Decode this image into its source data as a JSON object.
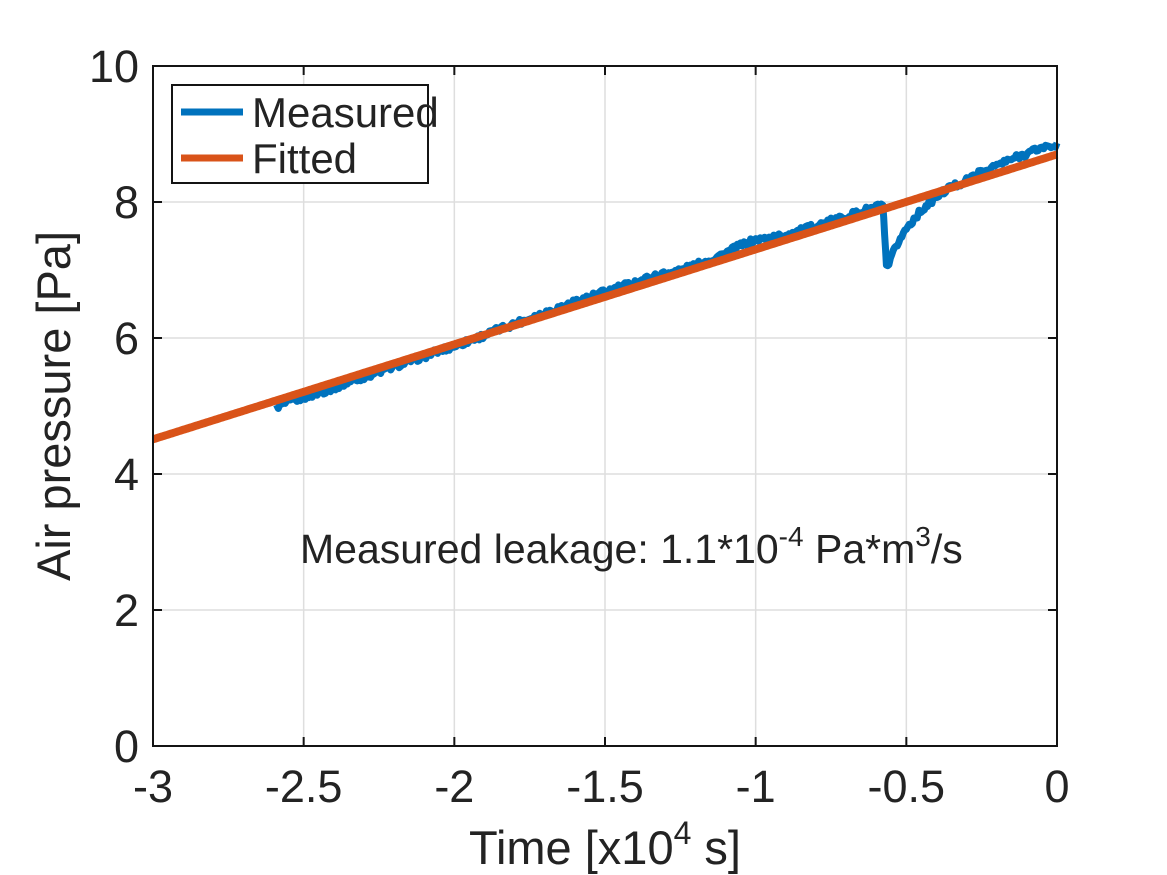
{
  "figure": {
    "background": "#ffffff"
  },
  "chart_data": {
    "type": "line",
    "title": "",
    "xlabel": "Time [x10^4 s]",
    "xlabel_parts": [
      {
        "t": "Time [x10"
      },
      {
        "t": "4",
        "sup": true
      },
      {
        "t": " s]"
      }
    ],
    "ylabel": "Air pressure [Pa]",
    "xlim": [
      -3,
      0
    ],
    "ylim": [
      0,
      10
    ],
    "xticks": [
      -3,
      -2.5,
      -2,
      -1.5,
      -1,
      -0.5,
      0
    ],
    "xtick_labels": [
      "-3",
      "-2.5",
      "-2",
      "-1.5",
      "-1",
      "-0.5",
      "0"
    ],
    "yticks": [
      0,
      2,
      4,
      6,
      8,
      10
    ],
    "ytick_labels": [
      "0",
      "2",
      "4",
      "6",
      "8",
      "10"
    ],
    "grid": true,
    "legend": {
      "position": "top-left",
      "entries": [
        {
          "label": "Measured",
          "color": "#0072BD"
        },
        {
          "label": "Fitted",
          "color": "#D95319"
        }
      ]
    },
    "annotation": {
      "text": "Measured leakage: 1.1*10^-4 Pa*m^3/s",
      "parts": [
        {
          "t": "Measured leakage: 1.1*10"
        },
        {
          "t": "-4",
          "sup": true
        },
        {
          "t": " Pa*m"
        },
        {
          "t": "3",
          "sup": true
        },
        {
          "t": "/s"
        }
      ],
      "x": -2.5,
      "y": 2.7
    },
    "series": [
      {
        "name": "Measured",
        "color": "#0072BD",
        "width": 7,
        "noise_amplitude": 0.045,
        "points": [
          [
            -2.59,
            4.99
          ],
          [
            -2.55,
            5.05
          ],
          [
            -2.5,
            5.13
          ],
          [
            -2.45,
            5.19
          ],
          [
            -2.4,
            5.27
          ],
          [
            -2.35,
            5.35
          ],
          [
            -2.3,
            5.43
          ],
          [
            -2.25,
            5.5
          ],
          [
            -2.2,
            5.58
          ],
          [
            -2.15,
            5.66
          ],
          [
            -2.1,
            5.73
          ],
          [
            -2.05,
            5.81
          ],
          [
            -2.0,
            5.88
          ],
          [
            -1.95,
            5.96
          ],
          [
            -1.9,
            6.04
          ],
          [
            -1.85,
            6.13
          ],
          [
            -1.8,
            6.21
          ],
          [
            -1.75,
            6.29
          ],
          [
            -1.7,
            6.37
          ],
          [
            -1.65,
            6.45
          ],
          [
            -1.6,
            6.53
          ],
          [
            -1.55,
            6.61
          ],
          [
            -1.5,
            6.68
          ],
          [
            -1.45,
            6.75
          ],
          [
            -1.4,
            6.82
          ],
          [
            -1.35,
            6.89
          ],
          [
            -1.3,
            6.95
          ],
          [
            -1.25,
            7.0
          ],
          [
            -1.2,
            7.07
          ],
          [
            -1.15,
            7.15
          ],
          [
            -1.1,
            7.25
          ],
          [
            -1.05,
            7.36
          ],
          [
            -1.0,
            7.44
          ],
          [
            -0.97,
            7.46
          ],
          [
            -0.94,
            7.48
          ],
          [
            -0.9,
            7.52
          ],
          [
            -0.85,
            7.58
          ],
          [
            -0.8,
            7.65
          ],
          [
            -0.75,
            7.72
          ],
          [
            -0.7,
            7.79
          ],
          [
            -0.65,
            7.86
          ],
          [
            -0.6,
            7.93
          ],
          [
            -0.578,
            7.96
          ],
          [
            -0.572,
            7.5
          ],
          [
            -0.566,
            7.04
          ],
          [
            -0.558,
            7.07
          ],
          [
            -0.548,
            7.2
          ],
          [
            -0.535,
            7.34
          ],
          [
            -0.52,
            7.46
          ],
          [
            -0.5,
            7.61
          ],
          [
            -0.47,
            7.78
          ],
          [
            -0.44,
            7.92
          ],
          [
            -0.41,
            8.04
          ],
          [
            -0.38,
            8.14
          ],
          [
            -0.35,
            8.23
          ],
          [
            -0.32,
            8.27
          ],
          [
            -0.29,
            8.34
          ],
          [
            -0.26,
            8.42
          ],
          [
            -0.23,
            8.48
          ],
          [
            -0.2,
            8.54
          ],
          [
            -0.17,
            8.59
          ],
          [
            -0.14,
            8.65
          ],
          [
            -0.11,
            8.7
          ],
          [
            -0.08,
            8.75
          ],
          [
            -0.05,
            8.8
          ],
          [
            -0.02,
            8.82
          ],
          [
            0.0,
            8.85
          ]
        ]
      },
      {
        "name": "Fitted",
        "color": "#D95319",
        "width": 8,
        "noise_amplitude": 0,
        "points": [
          [
            -3.0,
            4.51
          ],
          [
            0.0,
            8.7
          ]
        ]
      }
    ],
    "colors": {
      "grid": "#dedede",
      "axis": "#141414",
      "tick_label": "#232323",
      "background": "#ffffff"
    }
  }
}
